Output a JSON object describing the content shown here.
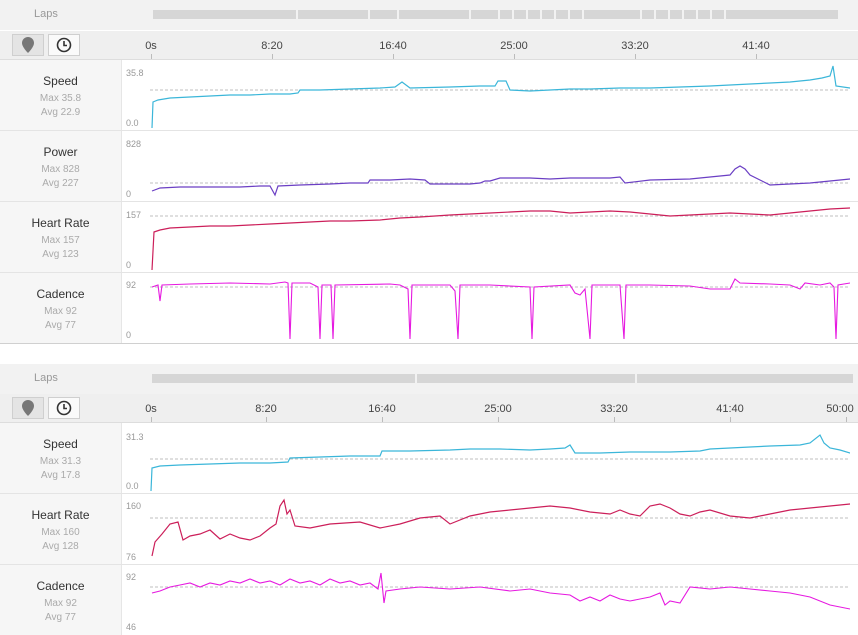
{
  "panels": [
    {
      "laps_label": "Laps",
      "map_icon": "map-pin-icon",
      "clock_icon": "clock-icon",
      "time_labels": [
        "0s",
        "8:20",
        "16:40",
        "25:00",
        "33:20",
        "41:40"
      ],
      "rows": [
        {
          "title": "Speed",
          "max": "Max 35.8",
          "avg": "Avg 22.9",
          "axis_max": "35.8",
          "axis_min": "0.0",
          "color": "#3bb6d9"
        },
        {
          "title": "Power",
          "max": "Max 828",
          "avg": "Avg 227",
          "axis_max": "828",
          "axis_min": "0",
          "color": "#6b3fc4"
        },
        {
          "title": "Heart Rate",
          "max": "Max 157",
          "avg": "Avg 123",
          "axis_max": "157",
          "axis_min": "0",
          "color": "#cc1f5a"
        },
        {
          "title": "Cadence",
          "max": "Max 92",
          "avg": "Avg 77",
          "axis_max": "92",
          "axis_min": "0",
          "color": "#e619e0"
        }
      ]
    },
    {
      "laps_label": "Laps",
      "map_icon": "map-pin-icon",
      "clock_icon": "clock-icon",
      "time_labels": [
        "0s",
        "8:20",
        "16:40",
        "25:00",
        "33:20",
        "41:40",
        "50:00"
      ],
      "rows": [
        {
          "title": "Speed",
          "max": "Max 31.3",
          "avg": "Avg 17.8",
          "axis_max": "31.3",
          "axis_min": "0.0",
          "color": "#3bb6d9"
        },
        {
          "title": "Heart Rate",
          "max": "Max 160",
          "avg": "Avg 128",
          "axis_max": "160",
          "axis_min": "76",
          "color": "#cc1f5a"
        },
        {
          "title": "Cadence",
          "max": "Max 92",
          "avg": "Avg 77",
          "axis_max": "92",
          "axis_min": "46",
          "color": "#e619e0"
        }
      ]
    }
  ]
}
